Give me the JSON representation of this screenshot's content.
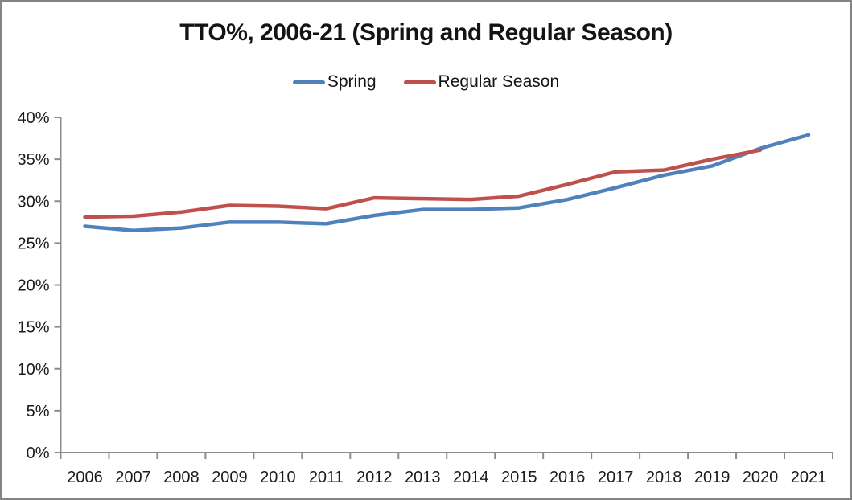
{
  "chart_data": {
    "type": "line",
    "title": "TTO%, 2006-21 (Spring and Regular Season)",
    "categories": [
      "2006",
      "2007",
      "2008",
      "2009",
      "2010",
      "2011",
      "2012",
      "2013",
      "2014",
      "2015",
      "2016",
      "2017",
      "2018",
      "2019",
      "2020",
      "2021"
    ],
    "series": [
      {
        "name": "Spring",
        "color": "#4F81BD",
        "values": [
          27.0,
          26.5,
          26.8,
          27.5,
          27.5,
          27.3,
          28.3,
          29.0,
          29.0,
          29.2,
          30.2,
          31.6,
          33.1,
          34.2,
          36.3,
          37.9
        ]
      },
      {
        "name": "Regular Season",
        "color": "#C0504D",
        "values": [
          28.1,
          28.2,
          28.7,
          29.5,
          29.4,
          29.1,
          30.4,
          30.3,
          30.2,
          30.6,
          32.0,
          33.5,
          33.7,
          35.0,
          36.1,
          null
        ]
      }
    ],
    "y_axis": {
      "min": 0,
      "max": 40,
      "step": 5,
      "tick_labels": [
        "0%",
        "5%",
        "10%",
        "15%",
        "20%",
        "25%",
        "30%",
        "35%",
        "40%"
      ]
    },
    "x_axis": {
      "tick_labels": [
        "2006",
        "2007",
        "2008",
        "2009",
        "2010",
        "2011",
        "2012",
        "2013",
        "2014",
        "2015",
        "2016",
        "2017",
        "2018",
        "2019",
        "2020",
        "2021"
      ]
    },
    "legend_position": "top",
    "grid": false,
    "axis_color": "#8c8c8c",
    "line_width": 4.5
  }
}
